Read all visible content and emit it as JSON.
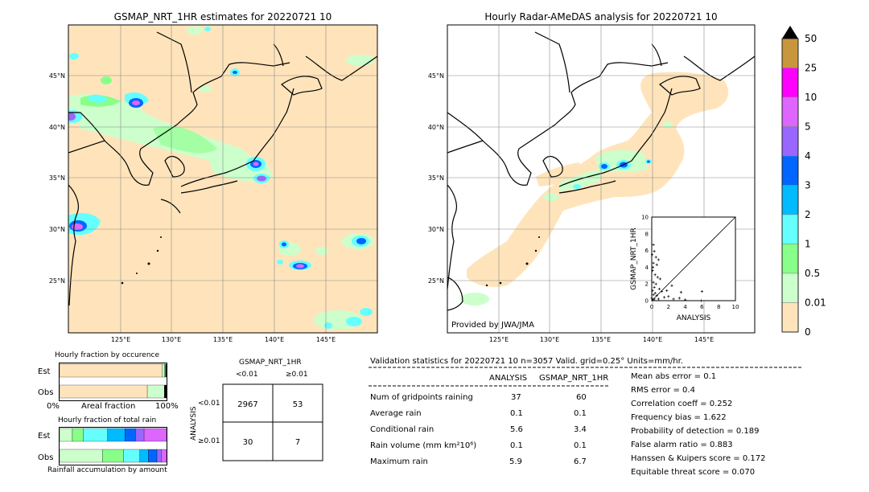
{
  "left_map": {
    "title": "GSMAP_NRT_1HR estimates for 20220721 10",
    "lat_ticks": [
      "45°N",
      "40°N",
      "35°N",
      "30°N",
      "25°N"
    ],
    "lon_ticks": [
      "125°E",
      "130°E",
      "135°E",
      "140°E",
      "145°E"
    ]
  },
  "right_map": {
    "title": "Hourly Radar-AMeDAS analysis for 20220721 10",
    "lat_ticks": [
      "45°N",
      "40°N",
      "35°N",
      "30°N",
      "25°N"
    ],
    "lon_ticks": [
      "125°E",
      "130°E",
      "135°E",
      "140°E",
      "145°E"
    ],
    "credit": "Provided by JWA/JMA"
  },
  "colorbar": {
    "labels": [
      "50",
      "25",
      "10",
      "5",
      "4",
      "3",
      "2",
      "1",
      "0.5",
      "0.01",
      "0"
    ],
    "colors": [
      "#c8963c",
      "#ff00ff",
      "#dd66ff",
      "#9966ff",
      "#0066ff",
      "#00bbff",
      "#66ffff",
      "#88ff88",
      "#ccffcc",
      "#ffe4bb"
    ]
  },
  "scatter": {
    "xlabel": "ANALYSIS",
    "ylabel": "GSMAP_NRT_1HR",
    "x_ticks": [
      "0",
      "2",
      "4",
      "6",
      "8",
      "10"
    ],
    "y_ticks": [
      "0",
      "2",
      "4",
      "6",
      "8",
      "10"
    ],
    "xlim": [
      0,
      10
    ],
    "ylim": [
      0,
      10
    ]
  },
  "chart_data": [
    {
      "type": "bar",
      "title": "Hourly fraction by occurence",
      "categories": [
        "Est",
        "Obs"
      ],
      "xlabel_left": "0%",
      "xlabel_mid": "Areal fraction",
      "xlabel_right": "100%",
      "series": [
        {
          "category": "Est",
          "segments": [
            {
              "color": "#ffe4bb",
              "value": 0.96
            },
            {
              "color": "#ccffcc",
              "value": 0.02
            },
            {
              "color": "#88ff88",
              "value": 0.01
            },
            {
              "color": "#000000",
              "value": 0.01
            }
          ]
        },
        {
          "category": "Obs",
          "segments": [
            {
              "color": "#ffe4bb",
              "value": 0.82
            },
            {
              "color": "#ccffcc",
              "value": 0.16
            },
            {
              "color": "#000000",
              "value": 0.02
            }
          ]
        }
      ]
    },
    {
      "type": "bar",
      "title": "Hourly fraction of total rain",
      "categories": [
        "Est",
        "Obs"
      ],
      "xlabel_mid": "Rainfall accumulation by amount",
      "series": [
        {
          "category": "Est",
          "segments": [
            {
              "color": "#ccffcc",
              "value": 0.12
            },
            {
              "color": "#88ff88",
              "value": 0.1
            },
            {
              "color": "#66ffff",
              "value": 0.23
            },
            {
              "color": "#00bbff",
              "value": 0.16
            },
            {
              "color": "#0066ff",
              "value": 0.1
            },
            {
              "color": "#9966ff",
              "value": 0.08
            },
            {
              "color": "#dd66ff",
              "value": 0.21
            }
          ]
        },
        {
          "category": "Obs",
          "segments": [
            {
              "color": "#ccffcc",
              "value": 0.4
            },
            {
              "color": "#88ff88",
              "value": 0.2
            },
            {
              "color": "#66ffff",
              "value": 0.15
            },
            {
              "color": "#00bbff",
              "value": 0.08
            },
            {
              "color": "#0066ff",
              "value": 0.08
            },
            {
              "color": "#9966ff",
              "value": 0.04
            },
            {
              "color": "#dd66ff",
              "value": 0.05
            }
          ]
        }
      ]
    }
  ],
  "contingency": {
    "title": "GSMAP_NRT_1HR",
    "col_labels": [
      "<0.01",
      "≥0.01"
    ],
    "row_axis": "ANALYSIS",
    "row_labels": [
      "<0.01",
      "≥0.01"
    ],
    "cells": [
      [
        "2967",
        "53"
      ],
      [
        "30",
        "7"
      ]
    ]
  },
  "validation": {
    "header": "Validation statistics for 20220721 10  n=3057 Valid. grid=0.25° Units=mm/hr.",
    "col_analysis": "ANALYSIS",
    "col_gsmap": "GSMAP_NRT_1HR",
    "rows": [
      {
        "label": "Num of gridpoints raining",
        "analysis": "37",
        "gsmap": "60"
      },
      {
        "label": "Average rain",
        "analysis": "0.1",
        "gsmap": "0.1"
      },
      {
        "label": "Conditional rain",
        "analysis": "5.6",
        "gsmap": "3.4"
      },
      {
        "label": "Rain volume (mm km²10⁶)",
        "analysis": "0.1",
        "gsmap": "0.1"
      },
      {
        "label": "Maximum rain",
        "analysis": "5.9",
        "gsmap": "6.7"
      }
    ],
    "scores": [
      "Mean abs error =    0.1",
      "RMS error =    0.4",
      "Correlation coeff =  0.252",
      "Frequency bias =  1.622",
      "Probability of detection =  0.189",
      "False alarm ratio =  0.883",
      "Hanssen & Kuipers score =  0.172",
      "Equitable threat score =  0.070"
    ]
  }
}
